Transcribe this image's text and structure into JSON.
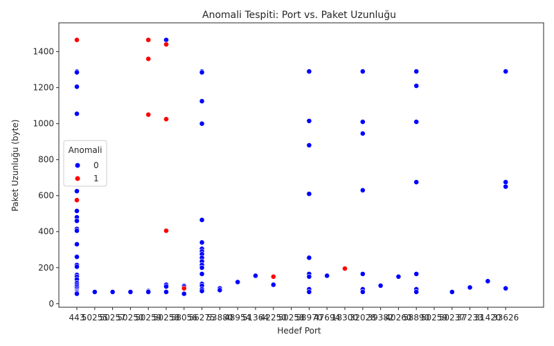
{
  "chart_data": {
    "type": "scatter",
    "title": "Anomali Tespiti: Port vs. Paket Uzunluğu",
    "xlabel": "Hedef Port",
    "ylabel": "Paket Uzunluğu (byte)",
    "x_categories": [
      "443",
      "50255",
      "50257",
      "50250",
      "50259",
      "50258",
      "58056",
      "56275",
      "53880",
      "48954",
      "51364",
      "42250",
      "50258",
      "58970",
      "47694",
      "18300",
      "32028",
      "39382",
      "40260",
      "58890",
      "50259",
      "50237",
      "37233",
      "31420",
      "33626"
    ],
    "ylim": [
      -20,
      1560
    ],
    "yticks": [
      0,
      200,
      400,
      600,
      800,
      1000,
      1200,
      1400
    ],
    "grid": false,
    "legend": {
      "title": "Anomali",
      "placement": "center-left",
      "entries": [
        {
          "label": "0",
          "color": "#0000ff"
        },
        {
          "label": "1",
          "color": "#ff0000"
        }
      ]
    },
    "series": [
      {
        "name": "0",
        "color": "#0000ff",
        "points": [
          [
            "443",
            1290
          ],
          [
            "443",
            1285
          ],
          [
            "443",
            1205
          ],
          [
            "443",
            1055
          ],
          [
            "443",
            625
          ],
          [
            "443",
            515
          ],
          [
            "443",
            480
          ],
          [
            "443",
            460
          ],
          [
            "443",
            415
          ],
          [
            "443",
            405
          ],
          [
            "443",
            330
          ],
          [
            "443",
            260
          ],
          [
            "443",
            215
          ],
          [
            "443",
            205
          ],
          [
            "443",
            160
          ],
          [
            "443",
            150
          ],
          [
            "443",
            135
          ],
          [
            "443",
            115
          ],
          [
            "443",
            105
          ],
          [
            "443",
            95
          ],
          [
            "443",
            85
          ],
          [
            "443",
            75
          ],
          [
            "443",
            70
          ],
          [
            "443",
            65
          ],
          [
            "443",
            60
          ],
          [
            "443",
            55
          ],
          [
            "50255",
            65
          ],
          [
            "50257",
            65
          ],
          [
            "50250",
            65
          ],
          [
            "50259",
            65
          ],
          [
            "50258",
            65
          ],
          [
            "58056",
            100
          ],
          [
            "58056",
            95
          ],
          [
            "58056",
            55
          ],
          [
            "56275",
            1290
          ],
          [
            "56275",
            1285
          ],
          [
            "56275",
            1125
          ],
          [
            "56275",
            1000
          ],
          [
            "56275",
            465
          ],
          [
            "56275",
            340
          ],
          [
            "56275",
            305
          ],
          [
            "56275",
            290
          ],
          [
            "56275",
            275
          ],
          [
            "56275",
            255
          ],
          [
            "56275",
            235
          ],
          [
            "56275",
            215
          ],
          [
            "56275",
            200
          ],
          [
            "56275",
            165
          ],
          [
            "56275",
            110
          ],
          [
            "56275",
            100
          ],
          [
            "56275",
            80
          ],
          [
            "56275",
            70
          ],
          [
            "53880",
            85
          ],
          [
            "53880",
            75
          ],
          [
            "48954",
            120
          ],
          [
            "51364",
            155
          ],
          [
            "42250",
            105
          ],
          [
            "50258",
            1465
          ],
          [
            "50258",
            105
          ],
          [
            "50258",
            95
          ],
          [
            "50258",
            65
          ],
          [
            "58970",
            1290
          ],
          [
            "58970",
            1015
          ],
          [
            "58970",
            880
          ],
          [
            "58970",
            610
          ],
          [
            "58970",
            255
          ],
          [
            "58970",
            165
          ],
          [
            "58970",
            150
          ],
          [
            "58970",
            80
          ],
          [
            "58970",
            65
          ],
          [
            "47694",
            155
          ],
          [
            "32028",
            1290
          ],
          [
            "32028",
            1010
          ],
          [
            "32028",
            945
          ],
          [
            "32028",
            630
          ],
          [
            "32028",
            165
          ],
          [
            "32028",
            80
          ],
          [
            "32028",
            65
          ],
          [
            "39382",
            100
          ],
          [
            "40260",
            150
          ],
          [
            "58890",
            1290
          ],
          [
            "58890",
            1210
          ],
          [
            "58890",
            1010
          ],
          [
            "58890",
            675
          ],
          [
            "58890",
            165
          ],
          [
            "58890",
            80
          ],
          [
            "58890",
            65
          ],
          [
            "50259",
            70
          ],
          [
            "50259",
            65
          ],
          [
            "50237",
            65
          ],
          [
            "37233",
            90
          ],
          [
            "31420",
            125
          ],
          [
            "33626",
            1290
          ],
          [
            "33626",
            675
          ],
          [
            "33626",
            650
          ],
          [
            "33626",
            85
          ]
        ]
      },
      {
        "name": "1",
        "color": "#ff0000",
        "points": [
          [
            "443",
            1465
          ],
          [
            "443",
            575
          ],
          [
            "58056",
            85
          ],
          [
            "42250",
            150
          ],
          [
            "50258",
            1440
          ],
          [
            "50258",
            1025
          ],
          [
            "50258",
            405
          ],
          [
            "18300",
            195
          ],
          [
            "50259",
            1465
          ],
          [
            "50259",
            1360
          ],
          [
            "50259",
            1050
          ]
        ]
      }
    ]
  }
}
